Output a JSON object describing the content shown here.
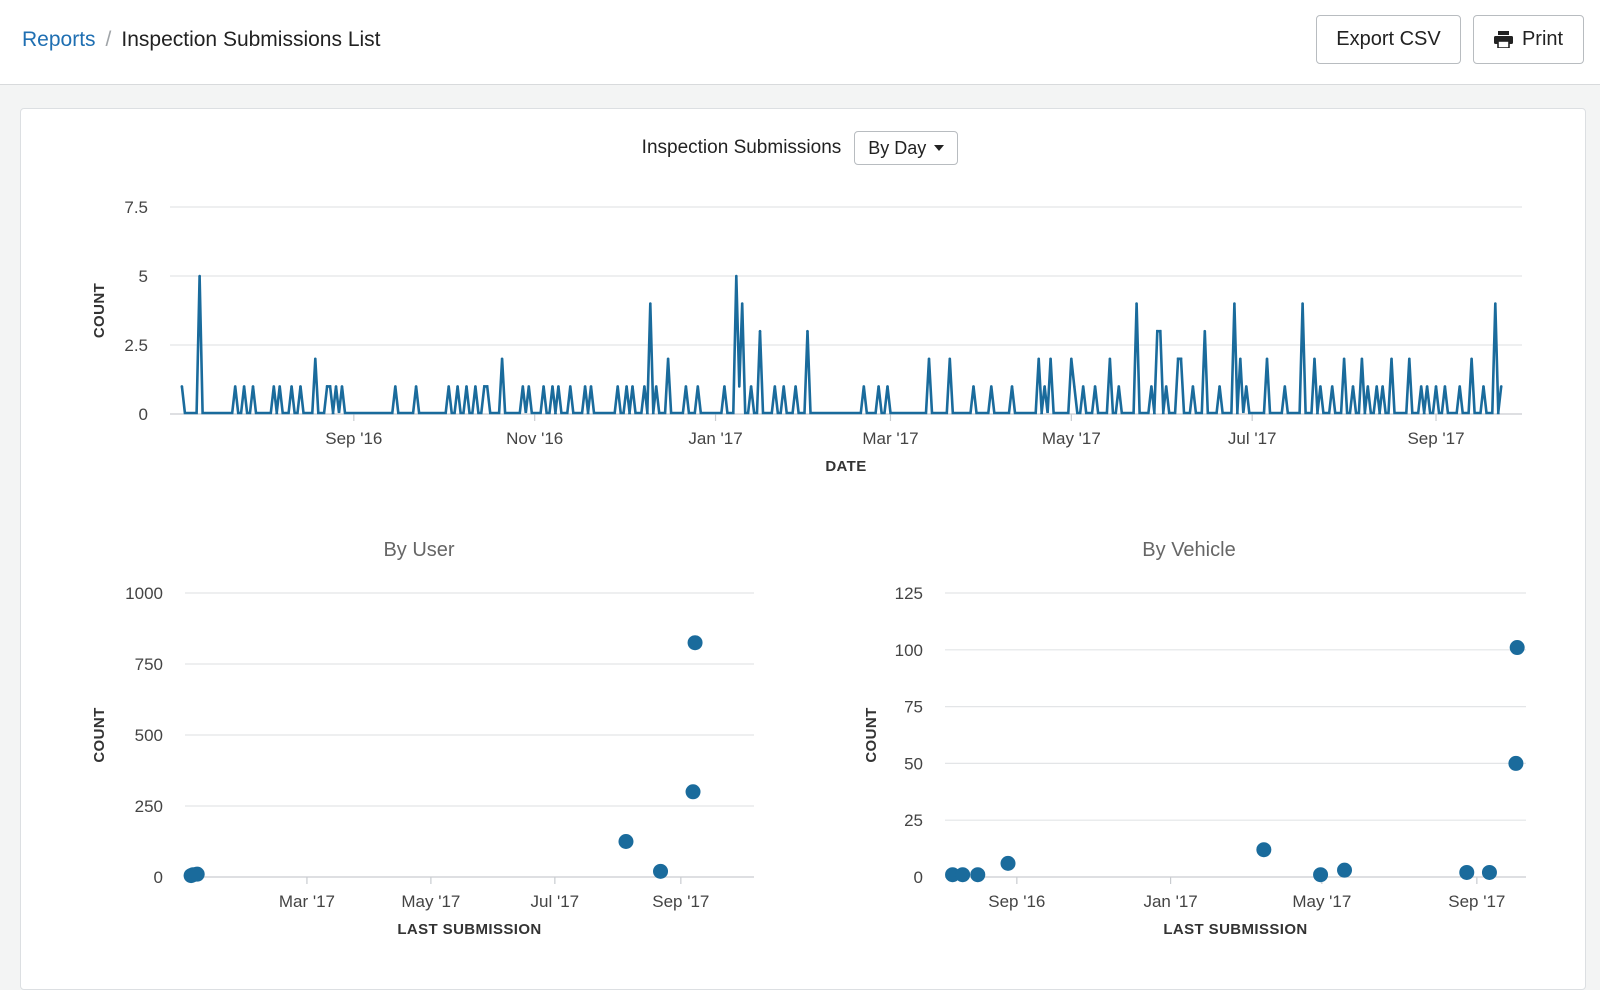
{
  "breadcrumb": {
    "parent": "Reports",
    "separator": "/",
    "current": "Inspection Submissions List"
  },
  "toolbar": {
    "export_label": "Export CSV",
    "print_label": "Print"
  },
  "chart_header": {
    "title": "Inspection Submissions",
    "grouping": "By Day"
  },
  "icons": {
    "print": "print-icon",
    "dropdown": "caret-down-icon"
  },
  "colors": {
    "series": "#1a6b9c",
    "grid": "#e3e5e7",
    "link": "#1f6fb2"
  },
  "chart_data": [
    {
      "type": "line",
      "title": "",
      "xlabel": "DATE",
      "ylabel": "COUNT",
      "ylim": [
        0,
        7.5
      ],
      "yticks": [
        0,
        2.5,
        5,
        7.5
      ],
      "ytick_labels": [
        "0",
        "2.5",
        "5",
        "7.5"
      ],
      "xlim": [
        "2016-07-01",
        "2017-09-30"
      ],
      "xticks": [
        "2016-09-01",
        "2016-11-01",
        "2017-01-01",
        "2017-03-01",
        "2017-05-01",
        "2017-07-01",
        "2017-09-01"
      ],
      "xtick_labels": [
        "Sep '16",
        "Nov '16",
        "Jan '17",
        "Mar '17",
        "May '17",
        "Jul '17",
        "Sep '17"
      ],
      "series": [
        {
          "points": [
            [
              "2016-07-05",
              1
            ],
            [
              "2016-07-11",
              5
            ],
            [
              "2016-07-23",
              1
            ],
            [
              "2016-07-26",
              1
            ],
            [
              "2016-07-29",
              1
            ],
            [
              "2016-08-05",
              1
            ],
            [
              "2016-08-07",
              1
            ],
            [
              "2016-08-11",
              1
            ],
            [
              "2016-08-14",
              1
            ],
            [
              "2016-08-19",
              2
            ],
            [
              "2016-08-23",
              1
            ],
            [
              "2016-08-24",
              1
            ],
            [
              "2016-08-26",
              1
            ],
            [
              "2016-08-28",
              1
            ],
            [
              "2016-09-15",
              1
            ],
            [
              "2016-09-22",
              1
            ],
            [
              "2016-10-03",
              1
            ],
            [
              "2016-10-06",
              1
            ],
            [
              "2016-10-09",
              1
            ],
            [
              "2016-10-12",
              1
            ],
            [
              "2016-10-15",
              1
            ],
            [
              "2016-10-16",
              1
            ],
            [
              "2016-10-21",
              2
            ],
            [
              "2016-10-28",
              1
            ],
            [
              "2016-10-30",
              1
            ],
            [
              "2016-11-04",
              1
            ],
            [
              "2016-11-07",
              1
            ],
            [
              "2016-11-09",
              1
            ],
            [
              "2016-11-13",
              1
            ],
            [
              "2016-11-18",
              1
            ],
            [
              "2016-11-20",
              1
            ],
            [
              "2016-11-29",
              1
            ],
            [
              "2016-12-02",
              1
            ],
            [
              "2016-12-04",
              1
            ],
            [
              "2016-12-08",
              1
            ],
            [
              "2016-12-10",
              4
            ],
            [
              "2016-12-12",
              1
            ],
            [
              "2016-12-16",
              2
            ],
            [
              "2016-12-22",
              1
            ],
            [
              "2016-12-26",
              1
            ],
            [
              "2017-01-04",
              1
            ],
            [
              "2017-01-08",
              5
            ],
            [
              "2017-01-09",
              1
            ],
            [
              "2017-01-10",
              4
            ],
            [
              "2017-01-13",
              1
            ],
            [
              "2017-01-16",
              3
            ],
            [
              "2017-01-21",
              1
            ],
            [
              "2017-01-24",
              1
            ],
            [
              "2017-01-28",
              1
            ],
            [
              "2017-02-01",
              3
            ],
            [
              "2017-02-20",
              1
            ],
            [
              "2017-02-25",
              1
            ],
            [
              "2017-02-28",
              1
            ],
            [
              "2017-03-14",
              2
            ],
            [
              "2017-03-21",
              2
            ],
            [
              "2017-03-29",
              1
            ],
            [
              "2017-04-04",
              1
            ],
            [
              "2017-04-11",
              1
            ],
            [
              "2017-04-20",
              2
            ],
            [
              "2017-04-22",
              1
            ],
            [
              "2017-04-24",
              2
            ],
            [
              "2017-05-01",
              2
            ],
            [
              "2017-05-02",
              1
            ],
            [
              "2017-05-05",
              1
            ],
            [
              "2017-05-09",
              1
            ],
            [
              "2017-05-14",
              2
            ],
            [
              "2017-05-17",
              1
            ],
            [
              "2017-05-23",
              4
            ],
            [
              "2017-05-28",
              1
            ],
            [
              "2017-05-30",
              3
            ],
            [
              "2017-05-31",
              3
            ],
            [
              "2017-06-02",
              1
            ],
            [
              "2017-06-06",
              2
            ],
            [
              "2017-06-07",
              2
            ],
            [
              "2017-06-11",
              1
            ],
            [
              "2017-06-15",
              3
            ],
            [
              "2017-06-20",
              1
            ],
            [
              "2017-06-25",
              4
            ],
            [
              "2017-06-27",
              2
            ],
            [
              "2017-06-29",
              1
            ],
            [
              "2017-07-06",
              2
            ],
            [
              "2017-07-12",
              1
            ],
            [
              "2017-07-18",
              4
            ],
            [
              "2017-07-22",
              2
            ],
            [
              "2017-07-24",
              1
            ],
            [
              "2017-07-28",
              1
            ],
            [
              "2017-08-01",
              2
            ],
            [
              "2017-08-04",
              1
            ],
            [
              "2017-08-07",
              2
            ],
            [
              "2017-08-09",
              1
            ],
            [
              "2017-08-12",
              1
            ],
            [
              "2017-08-14",
              1
            ],
            [
              "2017-08-17",
              2
            ],
            [
              "2017-08-23",
              2
            ],
            [
              "2017-08-27",
              1
            ],
            [
              "2017-08-29",
              1
            ],
            [
              "2017-09-01",
              1
            ],
            [
              "2017-09-04",
              1
            ],
            [
              "2017-09-09",
              1
            ],
            [
              "2017-09-13",
              2
            ],
            [
              "2017-09-17",
              1
            ],
            [
              "2017-09-21",
              4
            ],
            [
              "2017-09-23",
              1
            ]
          ]
        }
      ]
    },
    {
      "type": "scatter",
      "title": "By User",
      "xlabel": "LAST SUBMISSION",
      "ylabel": "COUNT",
      "ylim": [
        0,
        1000
      ],
      "yticks": [
        0,
        250,
        500,
        750,
        1000
      ],
      "ytick_labels": [
        "0",
        "250",
        "500",
        "750",
        "1000"
      ],
      "xlim": [
        "2016-12-31",
        "2017-10-07"
      ],
      "xticks": [
        "2017-03-01",
        "2017-05-01",
        "2017-07-01",
        "2017-09-01"
      ],
      "xtick_labels": [
        "Mar '17",
        "May '17",
        "Jul '17",
        "Sep '17"
      ],
      "points": [
        [
          "2017-01-03",
          5
        ],
        [
          "2017-01-04",
          8
        ],
        [
          "2017-01-06",
          10
        ],
        [
          "2017-08-05",
          125
        ],
        [
          "2017-08-22",
          20
        ],
        [
          "2017-09-07",
          300
        ],
        [
          "2017-09-08",
          825
        ]
      ]
    },
    {
      "type": "scatter",
      "title": "By Vehicle",
      "xlabel": "LAST SUBMISSION",
      "ylabel": "COUNT",
      "ylim": [
        0,
        125
      ],
      "yticks": [
        0,
        25,
        50,
        75,
        100,
        125
      ],
      "ytick_labels": [
        "0",
        "25",
        "50",
        "75",
        "100",
        "125"
      ],
      "xlim": [
        "2016-07-06",
        "2017-10-10"
      ],
      "xticks": [
        "2016-09-01",
        "2017-01-01",
        "2017-05-01",
        "2017-09-01"
      ],
      "xtick_labels": [
        "Sep '16",
        "Jan '17",
        "May '17",
        "Sep '17"
      ],
      "points": [
        [
          "2016-07-12",
          1
        ],
        [
          "2016-07-20",
          1
        ],
        [
          "2016-08-01",
          1
        ],
        [
          "2016-08-25",
          6
        ],
        [
          "2017-03-16",
          12
        ],
        [
          "2017-04-30",
          1
        ],
        [
          "2017-05-19",
          3
        ],
        [
          "2017-08-24",
          2
        ],
        [
          "2017-09-11",
          2
        ],
        [
          "2017-10-02",
          50
        ],
        [
          "2017-10-03",
          101
        ]
      ]
    }
  ]
}
